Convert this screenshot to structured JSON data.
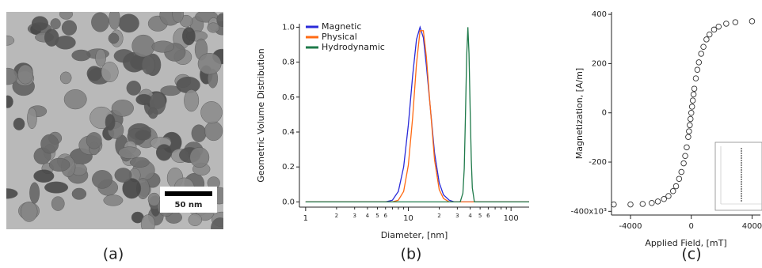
{
  "image_panel": {
    "scale_bar": "50 nm",
    "caption": "(a)"
  },
  "chart_data": [
    {
      "type": "line",
      "caption": "(b)",
      "x_label": "Diameter, [nm]",
      "y_label": "Geometric Volume Distribution",
      "xscale": "log",
      "xlim": [
        0.87,
        150
      ],
      "ylim": [
        -0.03,
        1.02
      ],
      "xticks": [
        1,
        2,
        3,
        4,
        5,
        6,
        10,
        {
          "value": 20,
          "label": "2"
        },
        {
          "value": 30,
          "label": "3"
        },
        {
          "value": 40,
          "label": "4"
        },
        {
          "value": 50,
          "label": "5"
        },
        {
          "value": 60,
          "label": "6"
        },
        100
      ],
      "xminorticks": [
        7,
        8,
        9,
        70,
        80,
        90
      ],
      "yticks": [
        {
          "value": 0,
          "label": "0.0"
        },
        0.2,
        0.4,
        0.6,
        0.8,
        {
          "value": 1,
          "label": "1.0"
        }
      ],
      "legend": "upper left",
      "x": [
        1,
        5,
        6,
        7,
        8,
        9,
        10,
        11,
        12,
        13,
        14,
        15,
        16,
        18,
        20,
        22,
        25,
        28,
        32,
        34,
        35,
        36,
        37,
        38,
        39,
        40,
        41,
        42,
        44,
        50,
        100,
        150
      ],
      "series": [
        {
          "name": "Magnetic",
          "color": "#2a2ad8",
          "values": [
            0,
            0,
            0,
            0.01,
            0.06,
            0.2,
            0.44,
            0.72,
            0.93,
            1,
            0.94,
            0.78,
            0.6,
            0.28,
            0.11,
            0.04,
            0.01,
            0,
            0,
            0,
            0,
            0,
            0,
            0,
            0,
            0,
            0,
            0,
            0,
            0,
            0,
            0
          ]
        },
        {
          "name": "Physical",
          "color": "#ff6a13",
          "values": [
            0,
            0,
            0,
            0,
            0.01,
            0.06,
            0.21,
            0.48,
            0.79,
            0.98,
            0.98,
            0.83,
            0.61,
            0.24,
            0.07,
            0.02,
            0,
            0,
            0,
            0,
            0,
            0,
            0,
            0,
            0,
            0,
            0,
            0,
            0,
            0,
            0,
            0
          ]
        },
        {
          "name": "Hydrodynamic",
          "color": "#1f7a4a",
          "values": [
            0,
            0,
            0,
            0,
            0,
            0,
            0,
            0,
            0,
            0,
            0,
            0,
            0,
            0,
            0,
            0,
            0,
            0,
            0,
            0.05,
            0.19,
            0.49,
            0.84,
            1,
            0.85,
            0.52,
            0.24,
            0.08,
            0,
            0,
            0,
            0
          ]
        }
      ]
    },
    {
      "type": "scatter",
      "caption": "(c)",
      "x_label": "Applied Field, [mT]",
      "y_label": "Magnetization, [A/m]",
      "xlim": [
        -5250,
        4550
      ],
      "ylim": [
        -415,
        410
      ],
      "xticks": [
        -4000,
        0,
        4000
      ],
      "yticks": [
        {
          "value": -400,
          "label": "-400x10³"
        },
        -200,
        0,
        200,
        400
      ],
      "color": "#333333",
      "x": [
        -5100,
        -4000,
        -3200,
        -2600,
        -2200,
        -1800,
        -1500,
        -1200,
        -1000,
        -800,
        -650,
        -500,
        -400,
        -300,
        -200,
        -150,
        -100,
        -50,
        0,
        50,
        100,
        150,
        200,
        300,
        400,
        500,
        650,
        800,
        1000,
        1200,
        1500,
        1800,
        2300,
        2900,
        4000
      ],
      "values": [
        -372,
        -372,
        -370,
        -366,
        -360,
        -350,
        -338,
        -318,
        -298,
        -268,
        -240,
        -205,
        -175,
        -140,
        -98,
        -75,
        -50,
        -25,
        0,
        25,
        50,
        75,
        98,
        140,
        175,
        205,
        240,
        268,
        298,
        318,
        338,
        350,
        362,
        368,
        372
      ]
    }
  ]
}
